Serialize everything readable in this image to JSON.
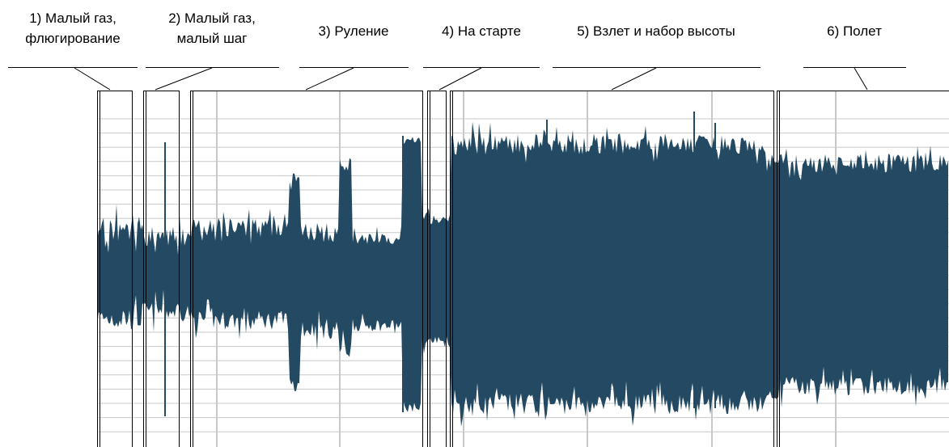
{
  "segments": [
    {
      "line1": "1) Малый газ,",
      "line2": "флюгирование"
    },
    {
      "line1": "2) Малый газ,",
      "line2": "малый шаг"
    },
    {
      "line1": "3) Руление"
    },
    {
      "line1": "4) На старте"
    },
    {
      "line1": "5) Взлет и набор высоты"
    },
    {
      "line1": "6) Полет"
    }
  ],
  "colors": {
    "waveform": "#234a62",
    "grid": "#c8c8c8",
    "frame": "#000000",
    "background": "#ffffff"
  },
  "waveform_icon": "audio-waveform-icon"
}
